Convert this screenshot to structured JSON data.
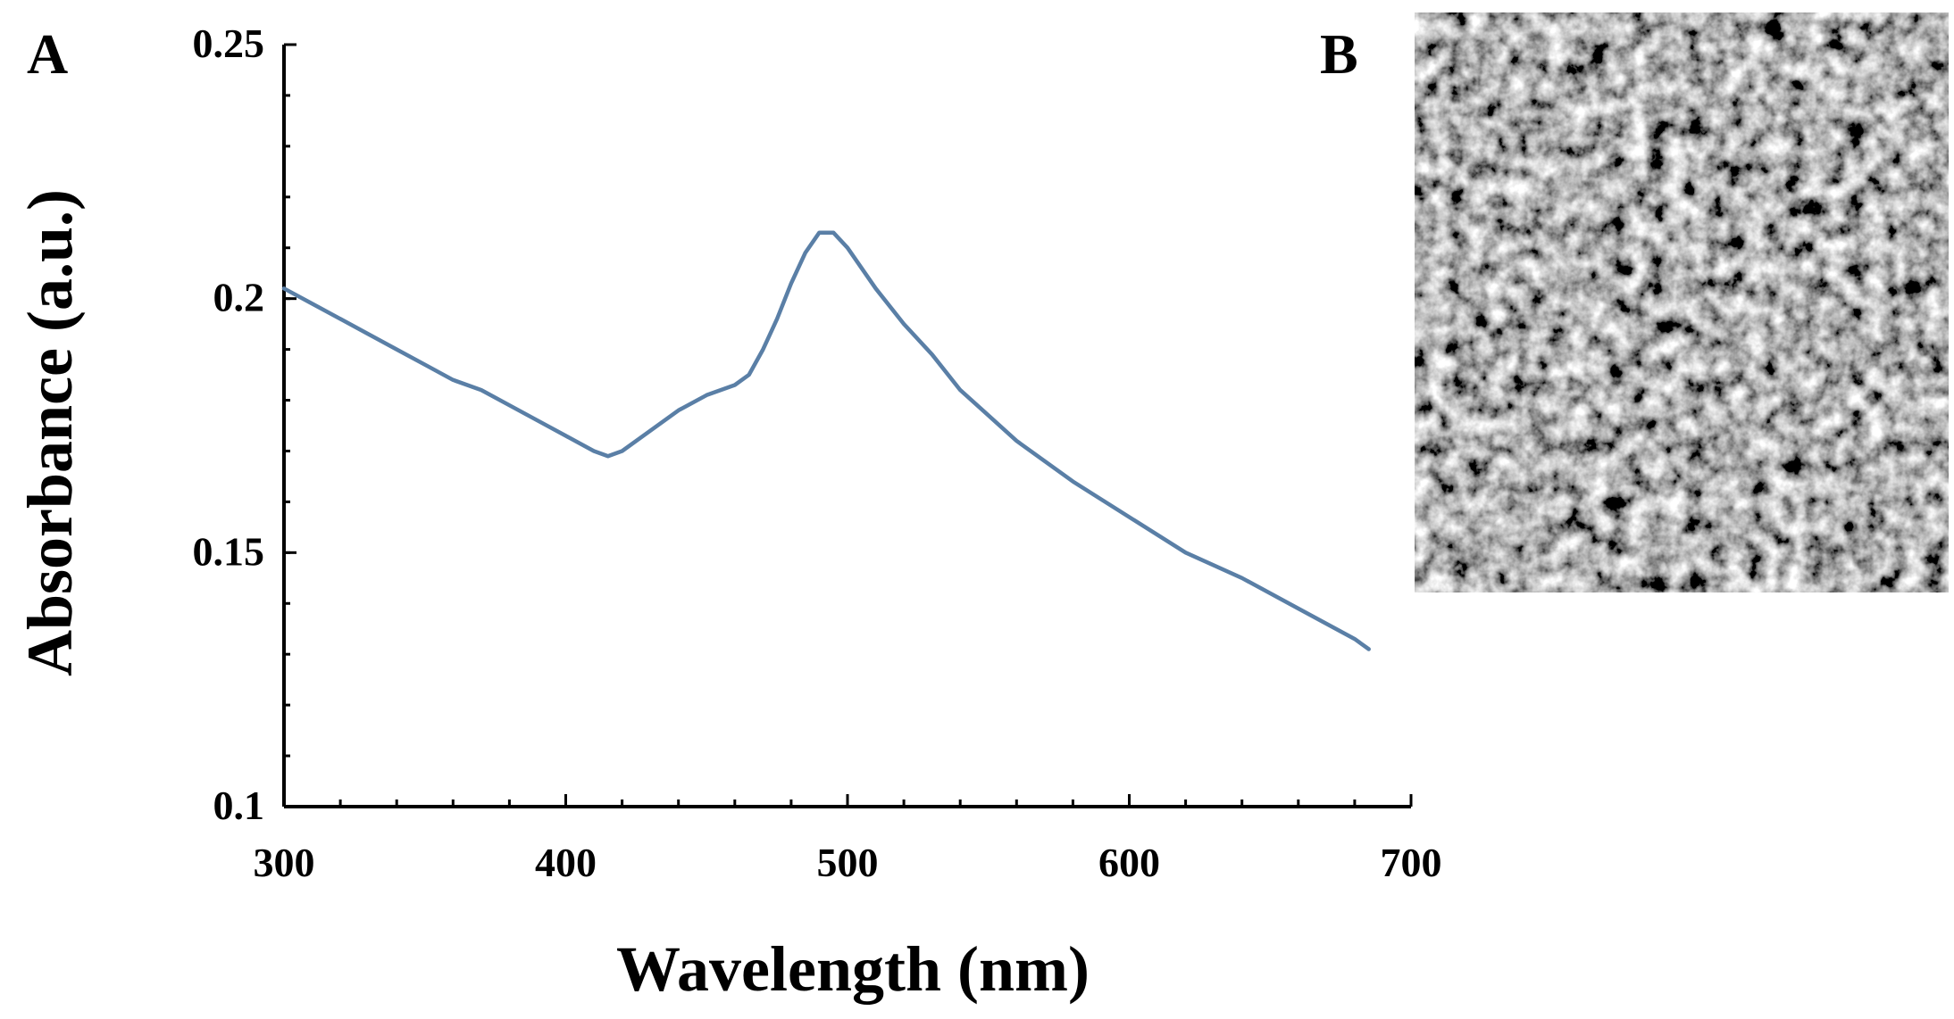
{
  "panels": {
    "a_label": "A",
    "b_label": "B"
  },
  "colors": {
    "series": "#5a7fa6",
    "axis": "#000000",
    "sem_bg": "#6b6b6b"
  },
  "sem_image": {
    "description_icon": "sem-micrograph-icon"
  },
  "chart_data": {
    "type": "line",
    "title": "",
    "xlabel": "Wavelength (nm)",
    "ylabel": "Absorbance (a.u.)",
    "xlim": [
      300,
      700
    ],
    "ylim": [
      0.1,
      0.25
    ],
    "xticks": [
      300,
      400,
      500,
      600,
      700
    ],
    "xtick_labels": [
      "300",
      "400",
      "500",
      "600",
      "700"
    ],
    "yticks": [
      0.1,
      0.15,
      0.2,
      0.25
    ],
    "ytick_labels": [
      "0.1",
      "0.15",
      "0.2",
      "0.25"
    ],
    "grid": false,
    "series": [
      {
        "name": "Absorbance",
        "x": [
          300,
          310,
          320,
          330,
          340,
          350,
          360,
          370,
          380,
          390,
          400,
          410,
          415,
          420,
          430,
          440,
          450,
          460,
          465,
          470,
          475,
          480,
          485,
          490,
          495,
          500,
          510,
          520,
          530,
          540,
          550,
          560,
          580,
          600,
          620,
          640,
          660,
          680,
          685
        ],
        "y": [
          0.202,
          0.199,
          0.196,
          0.193,
          0.19,
          0.187,
          0.184,
          0.182,
          0.179,
          0.176,
          0.173,
          0.17,
          0.169,
          0.17,
          0.174,
          0.178,
          0.181,
          0.183,
          0.185,
          0.19,
          0.196,
          0.203,
          0.209,
          0.213,
          0.213,
          0.21,
          0.202,
          0.195,
          0.189,
          0.182,
          0.177,
          0.172,
          0.164,
          0.157,
          0.15,
          0.145,
          0.139,
          0.133,
          0.131
        ]
      }
    ]
  }
}
